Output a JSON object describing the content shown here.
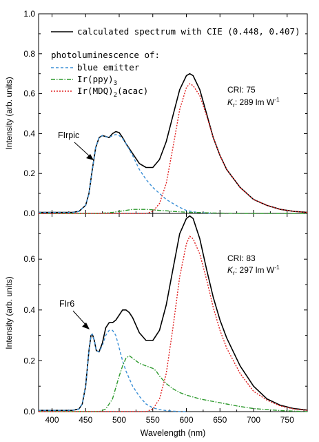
{
  "chart_data": [
    {
      "type": "line",
      "panel": "top",
      "xlim": [
        380,
        780
      ],
      "ylim": [
        0,
        1.0
      ],
      "ylabel": "Intensity (arb. units)",
      "xlabel": "",
      "ytick_labels": [
        "0.0",
        "0.2",
        "0.4",
        "0.6",
        "0.8",
        "1.0"
      ],
      "ytick_values": [
        0,
        0.2,
        0.4,
        0.6,
        0.8,
        1.0
      ],
      "legend": {
        "calc_label": "calculated spectrum with CIE (0.448, 0.407)",
        "header": "photoluminescence of:",
        "blue_label": "blue emitter",
        "ppy_label": "Ir(ppy)",
        "ppy_sub": "3",
        "mdq_label_a": "Ir(MDQ)",
        "mdq_sub": "2",
        "mdq_label_b": "(acac)"
      },
      "annotations": {
        "cri": "CRI: 75",
        "kr_symbol": "K",
        "kr_sub": "r",
        "kr_value": ": 289 lm W",
        "kr_sup": "-1",
        "emitter": "FIrpic"
      },
      "series": [
        {
          "name": "calculated spectrum with CIE (0.448, 0.407)",
          "color": "#000000",
          "style": "solid",
          "x": [
            380,
            430,
            440,
            450,
            455,
            460,
            465,
            470,
            475,
            480,
            485,
            490,
            495,
            500,
            505,
            510,
            520,
            530,
            540,
            550,
            560,
            570,
            580,
            590,
            600,
            605,
            610,
            620,
            630,
            640,
            650,
            660,
            680,
            700,
            720,
            740,
            760,
            780
          ],
          "y": [
            0.005,
            0.005,
            0.01,
            0.04,
            0.1,
            0.22,
            0.33,
            0.38,
            0.39,
            0.385,
            0.38,
            0.4,
            0.41,
            0.405,
            0.38,
            0.35,
            0.3,
            0.25,
            0.23,
            0.23,
            0.27,
            0.36,
            0.49,
            0.62,
            0.69,
            0.7,
            0.69,
            0.62,
            0.5,
            0.38,
            0.29,
            0.22,
            0.13,
            0.07,
            0.04,
            0.02,
            0.01,
            0.005
          ]
        },
        {
          "name": "blue emitter",
          "color": "#3a8fd6",
          "style": "dashed",
          "x": [
            380,
            430,
            440,
            450,
            455,
            460,
            465,
            470,
            475,
            480,
            485,
            490,
            495,
            500,
            505,
            510,
            520,
            530,
            540,
            550,
            560,
            570,
            580,
            590,
            600,
            610,
            620,
            640
          ],
          "y": [
            0.005,
            0.005,
            0.01,
            0.04,
            0.1,
            0.22,
            0.33,
            0.38,
            0.39,
            0.385,
            0.38,
            0.39,
            0.395,
            0.39,
            0.375,
            0.35,
            0.29,
            0.22,
            0.17,
            0.13,
            0.1,
            0.07,
            0.05,
            0.03,
            0.015,
            0.008,
            0.004,
            0.0
          ]
        },
        {
          "name": "Ir(ppy)3",
          "color": "#2e9a2e",
          "style": "dashdot",
          "x": [
            380,
            470,
            490,
            500,
            510,
            520,
            530,
            540,
            550,
            560,
            570,
            580,
            590,
            600,
            620,
            640,
            660,
            680,
            700,
            780
          ],
          "y": [
            0.0,
            0.0,
            0.005,
            0.01,
            0.015,
            0.02,
            0.02,
            0.02,
            0.018,
            0.015,
            0.013,
            0.01,
            0.008,
            0.006,
            0.004,
            0.002,
            0.001,
            0.0,
            0.0,
            0.0
          ]
        },
        {
          "name": "Ir(MDQ)2(acac)",
          "color": "#e02020",
          "style": "dotted",
          "x": [
            380,
            540,
            550,
            560,
            570,
            580,
            590,
            600,
            605,
            610,
            620,
            630,
            640,
            650,
            660,
            680,
            700,
            720,
            740,
            760,
            780
          ],
          "y": [
            0.0,
            0.0,
            0.01,
            0.05,
            0.15,
            0.33,
            0.52,
            0.63,
            0.65,
            0.64,
            0.59,
            0.49,
            0.38,
            0.29,
            0.22,
            0.13,
            0.07,
            0.04,
            0.02,
            0.01,
            0.005
          ]
        }
      ]
    },
    {
      "type": "line",
      "panel": "bottom",
      "xlim": [
        380,
        780
      ],
      "ylim": [
        0,
        0.78
      ],
      "xlabel": "Wavelength (nm)",
      "ylabel": "Intensity (arb. units)",
      "xtick_labels": [
        "400",
        "450",
        "500",
        "550",
        "600",
        "650",
        "700",
        "750"
      ],
      "xtick_values": [
        400,
        450,
        500,
        550,
        600,
        650,
        700,
        750
      ],
      "ytick_labels": [
        "0.0",
        "0.2",
        "0.4",
        "0.6"
      ],
      "ytick_values": [
        0,
        0.2,
        0.4,
        0.6
      ],
      "annotations": {
        "cri": "CRI: 83",
        "kr_symbol": "K",
        "kr_sub": "r",
        "kr_value": ": 297 lm W",
        "kr_sup": "-1",
        "emitter": "FIr6"
      },
      "series": [
        {
          "name": "calculated spectrum",
          "color": "#000000",
          "style": "solid",
          "x": [
            380,
            430,
            440,
            445,
            450,
            455,
            458,
            460,
            463,
            466,
            470,
            475,
            480,
            485,
            490,
            495,
            500,
            505,
            510,
            515,
            520,
            530,
            540,
            550,
            560,
            570,
            580,
            590,
            600,
            605,
            610,
            620,
            630,
            640,
            650,
            660,
            680,
            700,
            720,
            740,
            760,
            780
          ],
          "y": [
            0.005,
            0.005,
            0.01,
            0.03,
            0.1,
            0.24,
            0.3,
            0.305,
            0.28,
            0.24,
            0.235,
            0.27,
            0.33,
            0.35,
            0.35,
            0.36,
            0.38,
            0.4,
            0.4,
            0.39,
            0.37,
            0.31,
            0.28,
            0.28,
            0.32,
            0.42,
            0.56,
            0.7,
            0.76,
            0.77,
            0.76,
            0.68,
            0.56,
            0.45,
            0.36,
            0.29,
            0.18,
            0.1,
            0.05,
            0.025,
            0.012,
            0.006
          ]
        },
        {
          "name": "blue emitter",
          "color": "#3a8fd6",
          "style": "dashed",
          "x": [
            380,
            430,
            440,
            445,
            450,
            455,
            458,
            460,
            463,
            466,
            470,
            475,
            480,
            485,
            490,
            495,
            500,
            505,
            510,
            520,
            530,
            540,
            550,
            560,
            570,
            580,
            590,
            600
          ],
          "y": [
            0.005,
            0.005,
            0.01,
            0.03,
            0.1,
            0.24,
            0.3,
            0.305,
            0.28,
            0.24,
            0.235,
            0.26,
            0.3,
            0.32,
            0.32,
            0.3,
            0.25,
            0.2,
            0.16,
            0.1,
            0.06,
            0.03,
            0.015,
            0.008,
            0.004,
            0.002,
            0.0,
            0.0
          ]
        },
        {
          "name": "Ir(ppy)3",
          "color": "#2e9a2e",
          "style": "dashdot",
          "x": [
            380,
            470,
            480,
            490,
            500,
            505,
            510,
            515,
            520,
            525,
            530,
            540,
            550,
            555,
            560,
            570,
            580,
            590,
            600,
            620,
            640,
            660,
            680,
            700,
            720,
            740,
            760,
            780
          ],
          "y": [
            0.0,
            0.0,
            0.01,
            0.05,
            0.14,
            0.18,
            0.21,
            0.22,
            0.21,
            0.2,
            0.19,
            0.18,
            0.17,
            0.16,
            0.14,
            0.11,
            0.09,
            0.075,
            0.065,
            0.05,
            0.04,
            0.03,
            0.02,
            0.012,
            0.008,
            0.004,
            0.002,
            0.0
          ]
        },
        {
          "name": "Ir(MDQ)2(acac)",
          "color": "#e02020",
          "style": "dotted",
          "x": [
            380,
            540,
            550,
            560,
            570,
            580,
            590,
            600,
            605,
            610,
            620,
            630,
            640,
            650,
            660,
            680,
            700,
            720,
            740,
            760,
            780
          ],
          "y": [
            0.0,
            0.0,
            0.01,
            0.05,
            0.15,
            0.33,
            0.53,
            0.66,
            0.69,
            0.68,
            0.62,
            0.52,
            0.41,
            0.32,
            0.25,
            0.15,
            0.08,
            0.045,
            0.022,
            0.01,
            0.005
          ]
        }
      ]
    }
  ]
}
